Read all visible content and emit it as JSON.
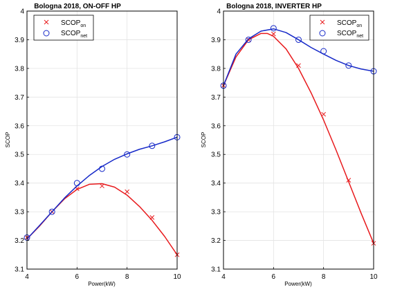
{
  "colors": {
    "series_on": "#e8191c",
    "series_net": "#1528c8",
    "grid": "#e3e3e3",
    "axis": "#000000",
    "background": "#ffffff"
  },
  "chart_data": [
    {
      "type": "line",
      "title": "Bologna 2018, ON-OFF HP",
      "xlabel": "Power(kW)",
      "ylabel": "SCOP",
      "xlim": [
        4,
        10
      ],
      "ylim": [
        3.1,
        4.0
      ],
      "xticks": [
        "4",
        "6",
        "8",
        "10"
      ],
      "yticks": [
        "3.1",
        "3.2",
        "3.3",
        "3.4",
        "3.5",
        "3.6",
        "3.7",
        "3.8",
        "3.9",
        "4"
      ],
      "grid": true,
      "legend": {
        "position": "top-left",
        "entries": [
          {
            "label": "SCOP",
            "sub": "on",
            "marker": "x"
          },
          {
            "label": "SCOP",
            "sub": "net",
            "marker": "o"
          }
        ]
      },
      "series": [
        {
          "name": "SCOPon",
          "marker": "x",
          "color": "series_on",
          "x": [
            4,
            5,
            6,
            7,
            8,
            9,
            10
          ],
          "y": [
            3.21,
            3.3,
            3.38,
            3.39,
            3.37,
            3.28,
            3.15
          ],
          "fit_x": [
            4.0,
            4.5,
            5.0,
            5.5,
            6.0,
            6.5,
            7.0,
            7.5,
            8.0,
            8.5,
            9.0,
            9.5,
            10.0
          ],
          "fit_y": [
            3.205,
            3.25,
            3.3,
            3.345,
            3.378,
            3.396,
            3.398,
            3.386,
            3.358,
            3.318,
            3.27,
            3.214,
            3.15
          ]
        },
        {
          "name": "SCOPnet",
          "marker": "o",
          "color": "series_net",
          "x": [
            4,
            5,
            6,
            7,
            8,
            9,
            10
          ],
          "y": [
            3.21,
            3.3,
            3.4,
            3.45,
            3.5,
            3.53,
            3.56
          ],
          "fit_x": [
            4.0,
            4.5,
            5.0,
            5.5,
            6.0,
            6.5,
            7.0,
            7.5,
            8.0,
            8.5,
            9.0,
            9.5,
            10.0
          ],
          "fit_y": [
            3.205,
            3.252,
            3.3,
            3.348,
            3.39,
            3.427,
            3.458,
            3.483,
            3.502,
            3.518,
            3.53,
            3.544,
            3.56
          ]
        }
      ]
    },
    {
      "type": "line",
      "title": "Bologna 2018, INVERTER HP",
      "xlabel": "Power(kW)",
      "ylabel": "SCOP",
      "xlim": [
        4,
        10
      ],
      "ylim": [
        3.1,
        4.0
      ],
      "xticks": [
        "4",
        "6",
        "8",
        "10"
      ],
      "yticks": [
        "3.1",
        "3.2",
        "3.3",
        "3.4",
        "3.5",
        "3.6",
        "3.7",
        "3.8",
        "3.9",
        "4"
      ],
      "grid": true,
      "legend": {
        "position": "top-right",
        "entries": [
          {
            "label": "SCOP",
            "sub": "on",
            "marker": "x"
          },
          {
            "label": "SCOP",
            "sub": "net",
            "marker": "o"
          }
        ]
      },
      "series": [
        {
          "name": "SCOPon",
          "marker": "x",
          "color": "series_on",
          "x": [
            4,
            5,
            6,
            7,
            8,
            9,
            10
          ],
          "y": [
            3.74,
            3.9,
            3.92,
            3.81,
            3.64,
            3.41,
            3.19
          ],
          "fit_x": [
            4.0,
            4.5,
            5.0,
            5.5,
            5.75,
            6.0,
            6.5,
            7.0,
            7.5,
            8.0,
            8.5,
            9.0,
            9.5,
            10.0
          ],
          "fit_y": [
            3.74,
            3.84,
            3.9,
            3.922,
            3.922,
            3.912,
            3.868,
            3.8,
            3.715,
            3.62,
            3.515,
            3.405,
            3.295,
            3.19
          ]
        },
        {
          "name": "SCOPnet",
          "marker": "o",
          "color": "series_net",
          "x": [
            4,
            5,
            6,
            7,
            8,
            9,
            10
          ],
          "y": [
            3.74,
            3.9,
            3.94,
            3.9,
            3.86,
            3.81,
            3.79
          ],
          "fit_x": [
            4.0,
            4.5,
            5.0,
            5.5,
            6.0,
            6.5,
            7.0,
            7.5,
            8.0,
            8.5,
            9.0,
            9.5,
            10.0
          ],
          "fit_y": [
            3.74,
            3.85,
            3.903,
            3.93,
            3.938,
            3.925,
            3.9,
            3.873,
            3.85,
            3.828,
            3.81,
            3.798,
            3.79
          ]
        }
      ]
    }
  ]
}
